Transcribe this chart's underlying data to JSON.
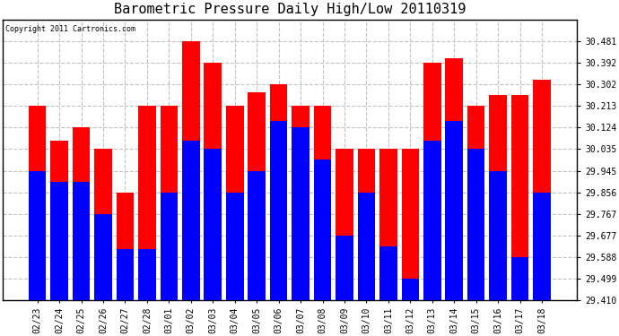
{
  "title": "Barometric Pressure Daily High/Low 20110319",
  "copyright": "Copyright 2011 Cartronics.com",
  "dates": [
    "02/23",
    "02/24",
    "02/25",
    "02/26",
    "02/27",
    "02/28",
    "03/01",
    "03/02",
    "03/03",
    "03/04",
    "03/05",
    "03/06",
    "03/07",
    "03/08",
    "03/09",
    "03/10",
    "03/11",
    "03/12",
    "03/13",
    "03/14",
    "03/15",
    "03/16",
    "03/17",
    "03/18"
  ],
  "highs": [
    30.213,
    30.068,
    30.124,
    30.035,
    29.856,
    30.213,
    30.213,
    30.481,
    30.392,
    30.213,
    30.27,
    30.302,
    30.213,
    30.213,
    30.035,
    30.035,
    30.035,
    30.035,
    30.392,
    30.41,
    30.213,
    30.258,
    30.258,
    30.32
  ],
  "lows": [
    29.945,
    29.9,
    29.9,
    29.767,
    29.623,
    29.623,
    29.856,
    30.068,
    30.035,
    29.856,
    29.945,
    30.15,
    30.124,
    29.99,
    29.677,
    29.856,
    29.634,
    29.499,
    30.068,
    30.15,
    30.035,
    29.945,
    29.588,
    29.856
  ],
  "ylim_min": 29.41,
  "ylim_max": 30.57,
  "yticks": [
    29.41,
    29.499,
    29.588,
    29.677,
    29.767,
    29.856,
    29.945,
    30.035,
    30.124,
    30.213,
    30.302,
    30.392,
    30.481
  ],
  "high_color": "#ff0000",
  "low_color": "#0000ff",
  "bg_color": "#ffffff",
  "grid_color": "#c0c0c0",
  "title_fontsize": 11,
  "label_fontsize": 7,
  "tick_fontsize": 7
}
